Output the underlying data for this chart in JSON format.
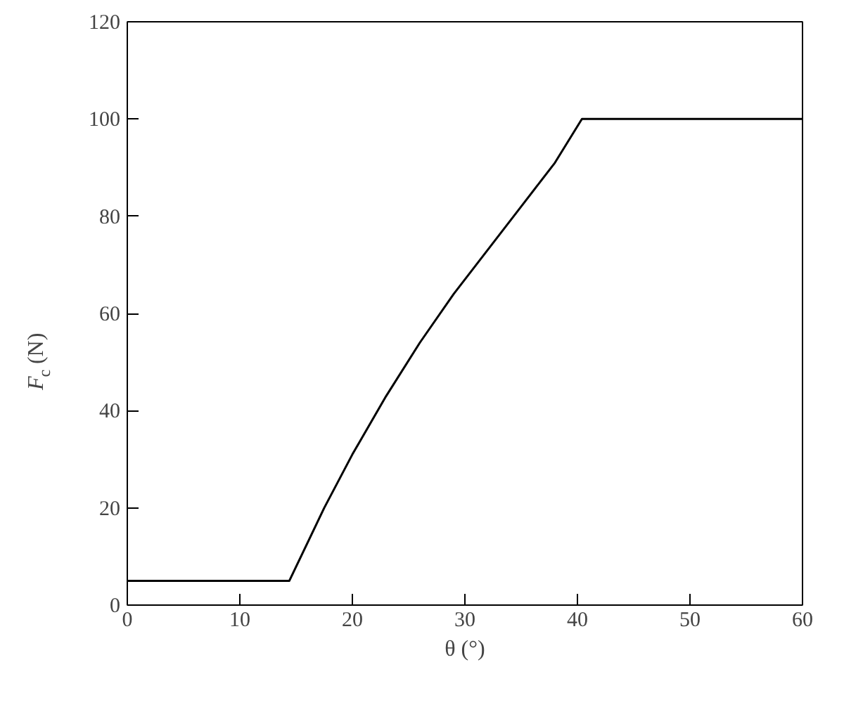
{
  "chart_data": {
    "type": "line",
    "xlabel": "θ (°)",
    "ylabel": "F$_{c}$ (N)",
    "series": [
      {
        "color": "#000000",
        "x": [
          0,
          14.4,
          17.5,
          20,
          23,
          26,
          29,
          32,
          35,
          38,
          40.4,
          60
        ],
        "values": [
          5,
          5,
          20,
          31,
          43,
          54,
          64,
          73,
          82,
          91,
          100,
          100
        ]
      }
    ],
    "xlim": [
      0,
      60
    ],
    "ylim": [
      0,
      120
    ],
    "xticks": [
      0,
      10,
      20,
      30,
      40,
      50,
      60
    ],
    "yticks": [
      0,
      20,
      40,
      60,
      80,
      100,
      120
    ],
    "grid": false,
    "marker": "none",
    "line_style": "solid"
  }
}
